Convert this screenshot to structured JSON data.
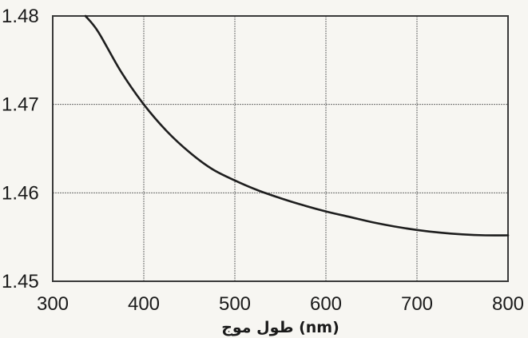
{
  "chart_data": {
    "type": "line",
    "title": "",
    "xlabel": "طول موج (nm)",
    "ylabel": "",
    "xlim": [
      300,
      800
    ],
    "ylim": [
      1.45,
      1.48
    ],
    "grid": true,
    "x_ticks": [
      "300",
      "400",
      "500",
      "600",
      "700",
      "800"
    ],
    "y_ticks": [
      "1.45",
      "1.46",
      "1.47",
      "1.48"
    ],
    "series": [
      {
        "x": [
          336,
          350,
          375,
          400,
          425,
          450,
          475,
          500,
          525,
          550,
          575,
          600,
          625,
          650,
          675,
          700,
          725,
          750,
          775,
          800
        ],
        "y": [
          1.48,
          1.4782,
          1.4737,
          1.47,
          1.467,
          1.4646,
          1.4627,
          1.4614,
          1.4603,
          1.4594,
          1.4586,
          1.4579,
          1.4573,
          1.4567,
          1.4562,
          1.4558,
          1.4555,
          1.4553,
          1.4552,
          1.4552
        ]
      }
    ]
  },
  "colors": {
    "curve": "#1e1e1e",
    "frame": "#3a3a3a",
    "grid": "#6a6a6a"
  }
}
